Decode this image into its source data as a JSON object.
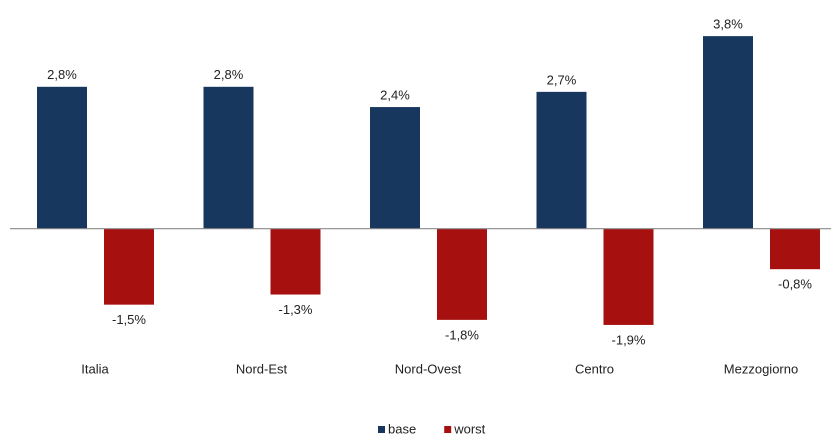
{
  "chart_data": {
    "type": "bar",
    "categories": [
      "Italia",
      "Nord-Est",
      "Nord-Ovest",
      "Centro",
      "Mezzogiorno"
    ],
    "series": [
      {
        "name": "base",
        "color": "#17375e",
        "values": [
          2.8,
          2.8,
          2.4,
          2.7,
          3.8
        ],
        "value_labels": [
          "2,8%",
          "2,8%",
          "2,4%",
          "2,7%",
          "3,8%"
        ]
      },
      {
        "name": "worst",
        "color": "#a6110f",
        "values": [
          -1.5,
          -1.3,
          -1.8,
          -1.9,
          -0.8
        ],
        "value_labels": [
          "-1,5%",
          "-1,3%",
          "-1,8%",
          "-1,9%",
          "-0,8%"
        ]
      }
    ],
    "ylim": [
      -2,
      4
    ],
    "legend": "bottom"
  }
}
